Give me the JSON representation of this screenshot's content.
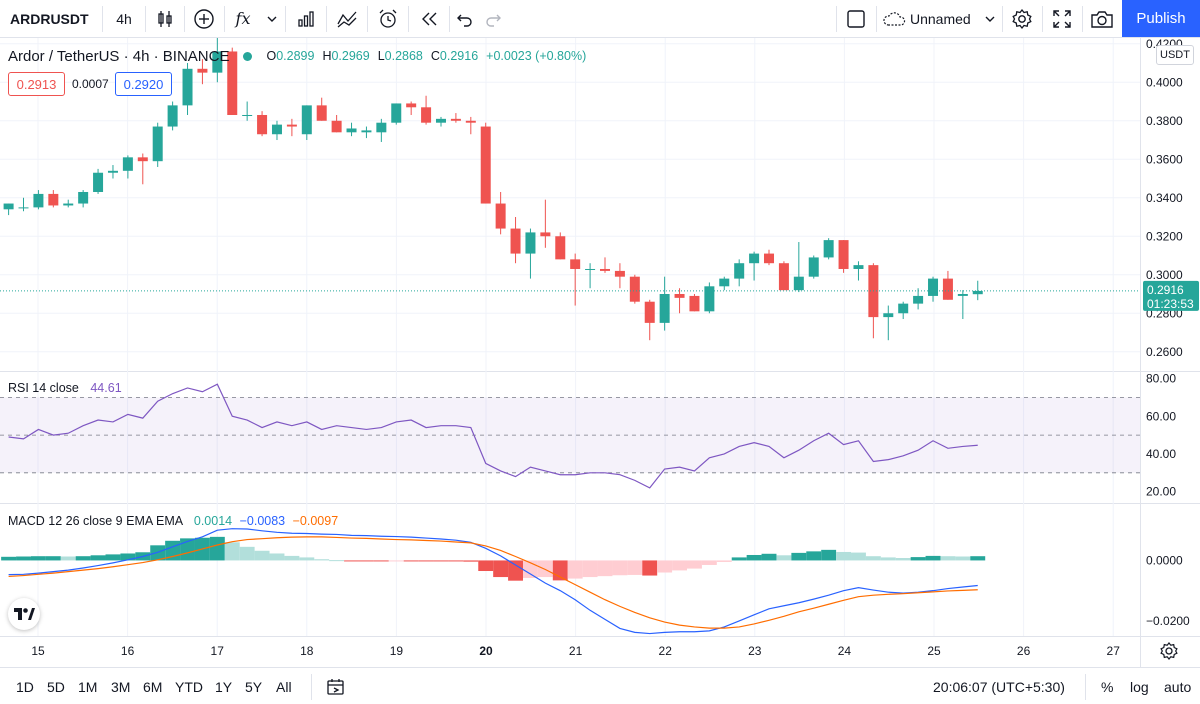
{
  "toolbar": {
    "symbol": "ARDRUSDT",
    "interval": "4h",
    "fx_label": "fx",
    "layout_name": "Unnamed",
    "publish": "Publish",
    "icons": [
      "candles-icon",
      "plus-circle-icon",
      "fx-icon",
      "chevron-down-icon",
      "bar-chart-icon",
      "compare-icon",
      "alarm-icon",
      "replay-icon",
      "undo-icon",
      "redo-icon",
      "square-icon",
      "cloud-icon",
      "gear-icon",
      "fullscreen-icon",
      "camera-icon"
    ]
  },
  "legend": {
    "title": "Ardor / TetherUS · 4h · BINANCE",
    "open_label": "O",
    "open": "0.2899",
    "high_label": "H",
    "high": "0.2969",
    "low_label": "L",
    "low": "0.2868",
    "close_label": "C",
    "close": "0.2916",
    "change": "+0.0023 (+0.80%)",
    "sell_price": "0.2913",
    "spread": "0.0007",
    "buy_price": "0.2920"
  },
  "price_axis": {
    "unit": "USDT",
    "labels": [
      "0.4200",
      "0.4000",
      "0.3800",
      "0.3600",
      "0.3400",
      "0.3200",
      "0.3000",
      "0.2800",
      "0.2600"
    ],
    "last_price": "0.2916",
    "countdown": "01:23:53"
  },
  "rsi": {
    "legend": "RSI 14 close",
    "value": "44.61",
    "axis_labels": [
      "80.00",
      "60.00",
      "40.00",
      "20.00"
    ]
  },
  "macd": {
    "legend": "MACD 12 26 close 9 EMA EMA",
    "hist_value": "0.0014",
    "macd_value": "−0.0083",
    "signal_value": "−0.0097",
    "axis_labels": [
      "0.0000",
      "−0.0200"
    ]
  },
  "time_axis": {
    "labels": [
      "15",
      "16",
      "17",
      "18",
      "19",
      "20",
      "21",
      "22",
      "23",
      "24",
      "25",
      "26",
      "27"
    ]
  },
  "bottombar": {
    "ranges": [
      "1D",
      "5D",
      "1M",
      "3M",
      "6M",
      "YTD",
      "1Y",
      "5Y",
      "All"
    ],
    "clock": "20:06:07 (UTC+5:30)",
    "percent": "%",
    "log": "log",
    "auto": "auto"
  },
  "colors": {
    "up": "#26a69a",
    "down": "#ef5350",
    "up_light": "#b2dfdb",
    "down_light": "#ffcdd2",
    "rsi_line": "#7e57c2",
    "macd_line": "#2962ff",
    "signal_line": "#ff6d00",
    "accent": "#2962ff"
  },
  "chart_data": {
    "type": "candlestick",
    "symbol": "Ardor / TetherUS",
    "interval": "4h",
    "y_range": [
      0.25,
      0.423
    ],
    "candles": [
      [
        0.334,
        0.337,
        0.331,
        0.337
      ],
      [
        0.335,
        0.34,
        0.333,
        0.335
      ],
      [
        0.335,
        0.344,
        0.334,
        0.342
      ],
      [
        0.342,
        0.344,
        0.335,
        0.336
      ],
      [
        0.336,
        0.339,
        0.335,
        0.337
      ],
      [
        0.337,
        0.344,
        0.335,
        0.343
      ],
      [
        0.343,
        0.355,
        0.342,
        0.353
      ],
      [
        0.353,
        0.357,
        0.35,
        0.354
      ],
      [
        0.354,
        0.362,
        0.35,
        0.361
      ],
      [
        0.361,
        0.363,
        0.347,
        0.359
      ],
      [
        0.359,
        0.379,
        0.356,
        0.377
      ],
      [
        0.377,
        0.39,
        0.375,
        0.388
      ],
      [
        0.388,
        0.41,
        0.383,
        0.407
      ],
      [
        0.407,
        0.412,
        0.399,
        0.405
      ],
      [
        0.405,
        0.426,
        0.4,
        0.416
      ],
      [
        0.416,
        0.418,
        0.383,
        0.383
      ],
      [
        0.383,
        0.39,
        0.38,
        0.383
      ],
      [
        0.383,
        0.385,
        0.372,
        0.373
      ],
      [
        0.373,
        0.38,
        0.37,
        0.378
      ],
      [
        0.378,
        0.381,
        0.372,
        0.377
      ],
      [
        0.373,
        0.388,
        0.37,
        0.388
      ],
      [
        0.388,
        0.392,
        0.38,
        0.38
      ],
      [
        0.38,
        0.383,
        0.374,
        0.374
      ],
      [
        0.374,
        0.379,
        0.372,
        0.376
      ],
      [
        0.374,
        0.377,
        0.371,
        0.375
      ],
      [
        0.374,
        0.381,
        0.369,
        0.379
      ],
      [
        0.379,
        0.389,
        0.378,
        0.389
      ],
      [
        0.389,
        0.39,
        0.383,
        0.387
      ],
      [
        0.387,
        0.393,
        0.378,
        0.379
      ],
      [
        0.379,
        0.382,
        0.377,
        0.381
      ],
      [
        0.381,
        0.384,
        0.379,
        0.38
      ],
      [
        0.38,
        0.382,
        0.373,
        0.379
      ],
      [
        0.377,
        0.379,
        0.337,
        0.337
      ],
      [
        0.337,
        0.343,
        0.321,
        0.324
      ],
      [
        0.324,
        0.33,
        0.306,
        0.311
      ],
      [
        0.311,
        0.324,
        0.298,
        0.322
      ],
      [
        0.322,
        0.339,
        0.314,
        0.32
      ],
      [
        0.32,
        0.322,
        0.308,
        0.308
      ],
      [
        0.308,
        0.311,
        0.284,
        0.303
      ],
      [
        0.303,
        0.306,
        0.293,
        0.303
      ],
      [
        0.303,
        0.309,
        0.301,
        0.302
      ],
      [
        0.302,
        0.306,
        0.293,
        0.299
      ],
      [
        0.299,
        0.3,
        0.285,
        0.286
      ],
      [
        0.286,
        0.287,
        0.266,
        0.275
      ],
      [
        0.275,
        0.299,
        0.271,
        0.29
      ],
      [
        0.29,
        0.293,
        0.28,
        0.288
      ],
      [
        0.289,
        0.29,
        0.281,
        0.281
      ],
      [
        0.281,
        0.296,
        0.28,
        0.294
      ],
      [
        0.294,
        0.299,
        0.292,
        0.298
      ],
      [
        0.298,
        0.308,
        0.294,
        0.306
      ],
      [
        0.306,
        0.312,
        0.297,
        0.311
      ],
      [
        0.311,
        0.313,
        0.305,
        0.306
      ],
      [
        0.306,
        0.307,
        0.293,
        0.292
      ],
      [
        0.292,
        0.317,
        0.291,
        0.299
      ],
      [
        0.299,
        0.31,
        0.298,
        0.309
      ],
      [
        0.309,
        0.319,
        0.308,
        0.318
      ],
      [
        0.318,
        0.318,
        0.301,
        0.303
      ],
      [
        0.303,
        0.307,
        0.297,
        0.305
      ],
      [
        0.305,
        0.306,
        0.267,
        0.278
      ],
      [
        0.278,
        0.284,
        0.266,
        0.28
      ],
      [
        0.28,
        0.286,
        0.277,
        0.285
      ],
      [
        0.285,
        0.293,
        0.282,
        0.289
      ],
      [
        0.289,
        0.299,
        0.286,
        0.298
      ],
      [
        0.298,
        0.302,
        0.287,
        0.287
      ],
      [
        0.289,
        0.292,
        0.277,
        0.29
      ],
      [
        0.2899,
        0.2969,
        0.2868,
        0.2916
      ]
    ],
    "rsi": {
      "y_range": [
        14,
        84
      ],
      "bands": [
        70,
        50,
        30
      ],
      "values": [
        49,
        48,
        53,
        50,
        51,
        55,
        58,
        57,
        61,
        59,
        68,
        72,
        75,
        73,
        77,
        60,
        58,
        54,
        57,
        55,
        57,
        53,
        55,
        54,
        53,
        54,
        57,
        58,
        54,
        55,
        55,
        54,
        35,
        31,
        28,
        33,
        31,
        29,
        29,
        30,
        30,
        29,
        26,
        22,
        32,
        33,
        31,
        38,
        40,
        44,
        46,
        44,
        38,
        42,
        47,
        51,
        45,
        47,
        36,
        37,
        39,
        42,
        47,
        43,
        44,
        44.61
      ]
    },
    "macd": {
      "y_range": [
        -0.025,
        0.019
      ],
      "hist": [
        0.0012,
        0.0013,
        0.0014,
        0.0014,
        0.0013,
        0.0014,
        0.0017,
        0.002,
        0.0023,
        0.0027,
        0.005,
        0.0065,
        0.0073,
        0.0075,
        0.0078,
        0.006,
        0.0045,
        0.0032,
        0.0023,
        0.0015,
        0.001,
        0.0004,
        0.0001,
        -0.0001,
        -0.0002,
        -0.0003,
        -0.0002,
        -0.0002,
        -0.0003,
        -0.0003,
        -0.0003,
        -0.0004,
        -0.0035,
        -0.0055,
        -0.0067,
        -0.0058,
        -0.0055,
        -0.0066,
        -0.006,
        -0.0055,
        -0.0052,
        -0.0049,
        -0.0048,
        -0.005,
        -0.004,
        -0.0033,
        -0.0027,
        -0.0015,
        -0.0005,
        0.001,
        0.0018,
        0.0022,
        0.0017,
        0.0025,
        0.003,
        0.0035,
        0.0028,
        0.0026,
        0.0014,
        0.001,
        0.0008,
        0.0011,
        0.0015,
        0.0014,
        0.0013,
        0.0014
      ],
      "macd": [
        -0.0047,
        -0.0046,
        -0.0042,
        -0.0037,
        -0.0032,
        -0.0025,
        -0.0017,
        -0.0008,
        0.0002,
        0.0013,
        0.0027,
        0.0045,
        0.0063,
        0.0078,
        0.01,
        0.0105,
        0.0104,
        0.0098,
        0.0093,
        0.009,
        0.0089,
        0.0087,
        0.0086,
        0.0083,
        0.0082,
        0.008,
        0.0079,
        0.0077,
        0.0074,
        0.0071,
        0.0067,
        0.006,
        0.004,
        0.0015,
        -0.0015,
        -0.0045,
        -0.0075,
        -0.01,
        -0.013,
        -0.0165,
        -0.0195,
        -0.0225,
        -0.0238,
        -0.0242,
        -0.0238,
        -0.0236,
        -0.0236,
        -0.0233,
        -0.022,
        -0.02,
        -0.018,
        -0.016,
        -0.015,
        -0.014,
        -0.0128,
        -0.0115,
        -0.01,
        -0.009,
        -0.0098,
        -0.0105,
        -0.0108,
        -0.0105,
        -0.01,
        -0.0093,
        -0.0088,
        -0.0083
      ],
      "signal": [
        -0.0053,
        -0.005,
        -0.0046,
        -0.0042,
        -0.0037,
        -0.0032,
        -0.0027,
        -0.0021,
        -0.0014,
        -0.0007,
        0.0002,
        0.0013,
        0.0025,
        0.0038,
        0.0051,
        0.0062,
        0.0069,
        0.0072,
        0.0075,
        0.0077,
        0.0078,
        0.0078,
        0.0076,
        0.0074,
        0.0073,
        0.0071,
        0.0069,
        0.0068,
        0.0066,
        0.0064,
        0.0061,
        0.0058,
        0.0048,
        0.0033,
        0.0013,
        -0.0008,
        -0.003,
        -0.0055,
        -0.008,
        -0.0105,
        -0.013,
        -0.0152,
        -0.0172,
        -0.019,
        -0.0204,
        -0.0214,
        -0.022,
        -0.0224,
        -0.0224,
        -0.022,
        -0.021,
        -0.0198,
        -0.0185,
        -0.017,
        -0.0158,
        -0.0145,
        -0.0132,
        -0.012,
        -0.0115,
        -0.0112,
        -0.011,
        -0.0107,
        -0.0104,
        -0.0101,
        -0.0099,
        -0.0097
      ]
    }
  }
}
